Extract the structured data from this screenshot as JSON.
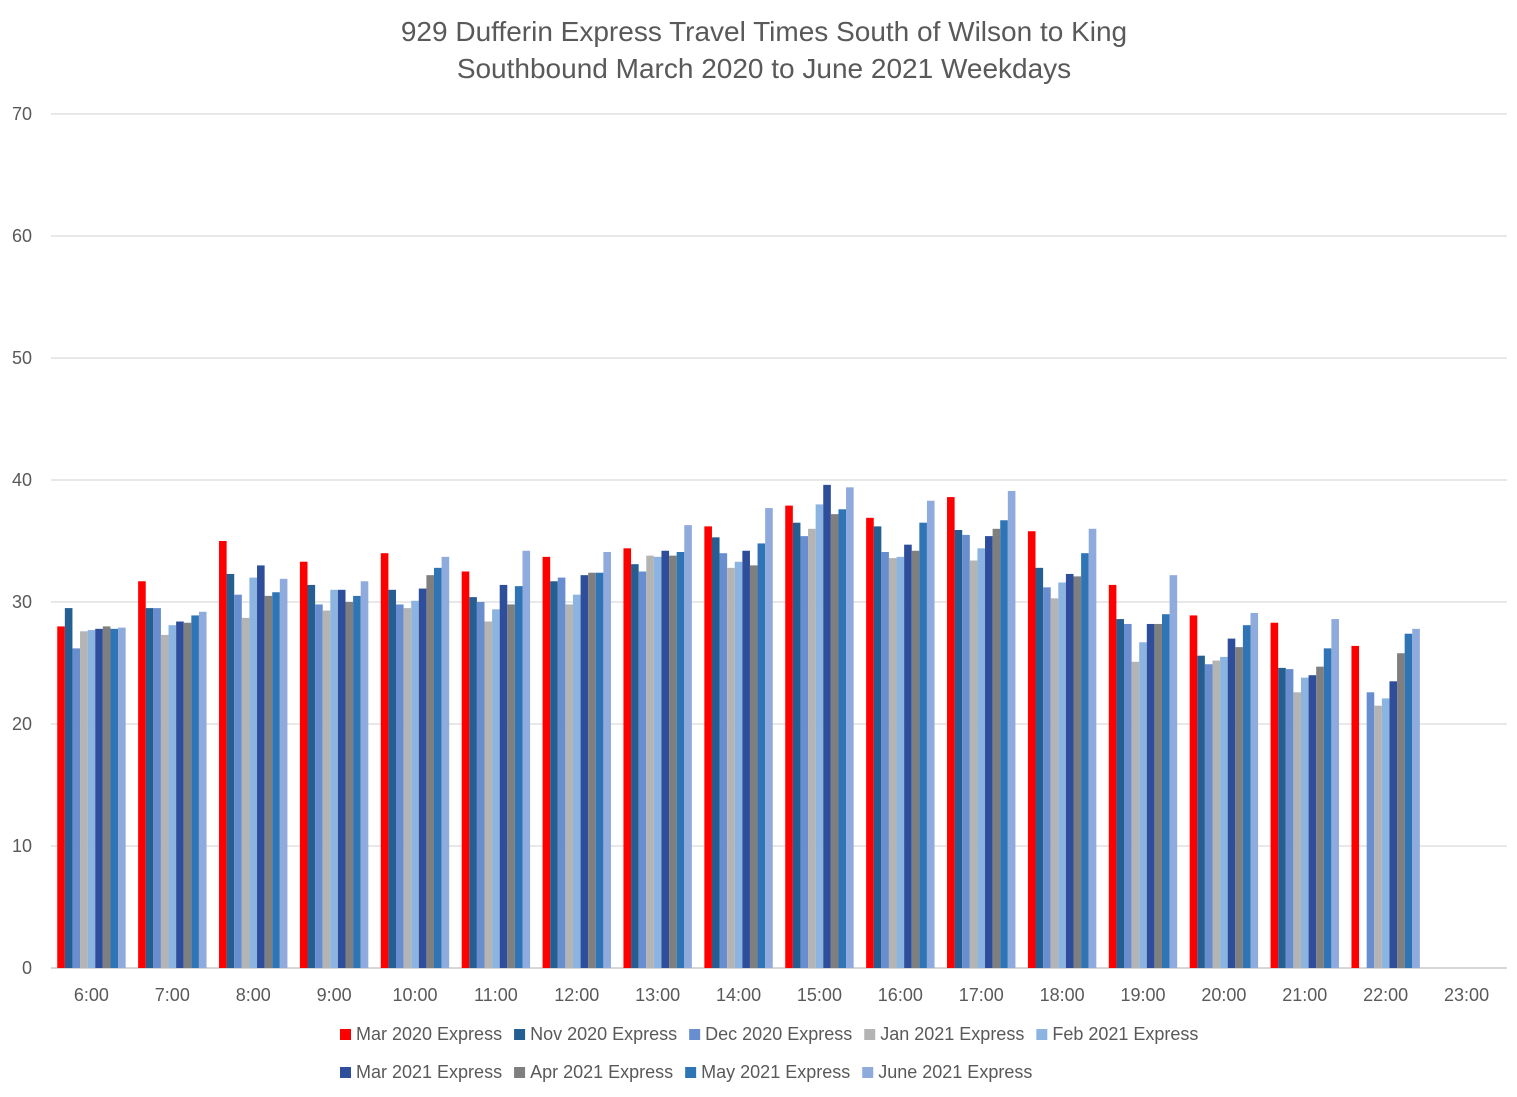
{
  "chart_data": {
    "type": "bar",
    "title_lines": [
      "929 Dufferin Express Travel Times South of Wilson to King",
      "Southbound March 2020 to June 2021 Weekdays"
    ],
    "xlabel": "",
    "ylabel": "",
    "ylim": [
      0,
      70
    ],
    "yticks": [
      "0",
      "10",
      "20",
      "30",
      "40",
      "50",
      "60",
      "70"
    ],
    "grid": true,
    "legend_position": "bottom",
    "categories": [
      "6:00",
      "7:00",
      "8:00",
      "9:00",
      "10:00",
      "11:00",
      "12:00",
      "13:00",
      "14:00",
      "15:00",
      "16:00",
      "17:00",
      "18:00",
      "19:00",
      "20:00",
      "21:00",
      "22:00",
      "23:00"
    ],
    "series": [
      {
        "name": "Mar 2020 Express",
        "color": "#ff0000",
        "values": [
          28.0,
          31.7,
          35.0,
          33.3,
          34.0,
          32.5,
          33.7,
          34.4,
          36.2,
          37.9,
          36.9,
          38.6,
          35.8,
          31.4,
          28.9,
          28.3,
          26.4,
          null
        ]
      },
      {
        "name": "Nov 2020 Express",
        "color": "#255e91",
        "values": [
          29.5,
          29.5,
          32.3,
          31.4,
          31.0,
          30.4,
          31.7,
          33.1,
          35.3,
          36.5,
          36.2,
          35.9,
          32.8,
          28.6,
          25.6,
          24.6,
          null,
          null
        ]
      },
      {
        "name": "Dec 2020 Express",
        "color": "#698ed0",
        "values": [
          26.2,
          29.5,
          30.6,
          29.8,
          29.8,
          30.0,
          32.0,
          32.5,
          34.0,
          35.4,
          34.1,
          35.5,
          31.2,
          28.2,
          24.9,
          24.5,
          22.6,
          null
        ]
      },
      {
        "name": "Jan 2021 Express",
        "color": "#b4b4b4",
        "values": [
          27.6,
          27.3,
          28.7,
          29.3,
          29.5,
          28.4,
          29.8,
          33.8,
          32.8,
          36.0,
          33.6,
          33.4,
          30.3,
          25.1,
          25.2,
          22.6,
          21.5,
          null
        ]
      },
      {
        "name": "Feb 2021 Express",
        "color": "#8cb4e0",
        "values": [
          27.7,
          28.1,
          32.0,
          31.0,
          30.1,
          29.4,
          30.6,
          33.7,
          33.3,
          38.0,
          33.7,
          34.4,
          31.6,
          26.7,
          25.5,
          23.8,
          22.1,
          null
        ]
      },
      {
        "name": "Mar 2021 Express",
        "color": "#2e4e9b",
        "values": [
          27.8,
          28.4,
          33.0,
          31.0,
          31.1,
          31.4,
          32.2,
          34.2,
          34.2,
          39.6,
          34.7,
          35.4,
          32.3,
          28.2,
          27.0,
          24.0,
          23.5,
          null
        ]
      },
      {
        "name": "Apr 2021 Express",
        "color": "#7f7f7f",
        "values": [
          28.0,
          28.3,
          30.5,
          30.0,
          32.2,
          29.8,
          32.4,
          33.8,
          33.0,
          37.2,
          34.2,
          36.0,
          32.1,
          28.2,
          26.3,
          24.7,
          25.8,
          null
        ]
      },
      {
        "name": "May 2021 Express",
        "color": "#2f75b6",
        "values": [
          27.8,
          28.9,
          30.8,
          30.5,
          32.8,
          31.3,
          32.4,
          34.1,
          34.8,
          37.6,
          36.5,
          36.7,
          34.0,
          29.0,
          28.1,
          26.2,
          27.4,
          null
        ]
      },
      {
        "name": "June 2021 Express",
        "color": "#8faadc",
        "values": [
          27.9,
          29.2,
          31.9,
          31.7,
          33.7,
          34.2,
          34.1,
          36.3,
          37.7,
          39.4,
          38.3,
          39.1,
          36.0,
          32.2,
          29.1,
          28.6,
          27.8,
          null
        ]
      }
    ]
  }
}
